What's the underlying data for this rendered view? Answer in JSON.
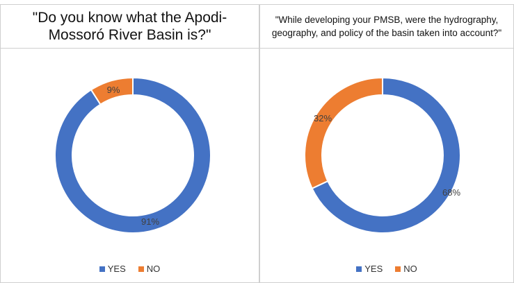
{
  "chart_data": [
    {
      "type": "pie",
      "title": "\"Do you know what the Apodi-Mossoró River Basin is?\"",
      "categories": [
        "YES",
        "NO"
      ],
      "values": [
        91,
        9
      ],
      "labels": [
        "91%",
        "9%"
      ],
      "colors": [
        "#4472C4",
        "#ED7D31"
      ],
      "legend_position": "bottom"
    },
    {
      "type": "pie",
      "title": "\"While developing your PMSB, were the hydrography, geography, and policy of the basin taken into account?\"",
      "categories": [
        "YES",
        "NO"
      ],
      "values": [
        68,
        32
      ],
      "labels": [
        "68%",
        "32%"
      ],
      "colors": [
        "#4472C4",
        "#ED7D31"
      ],
      "legend_position": "bottom"
    }
  ]
}
